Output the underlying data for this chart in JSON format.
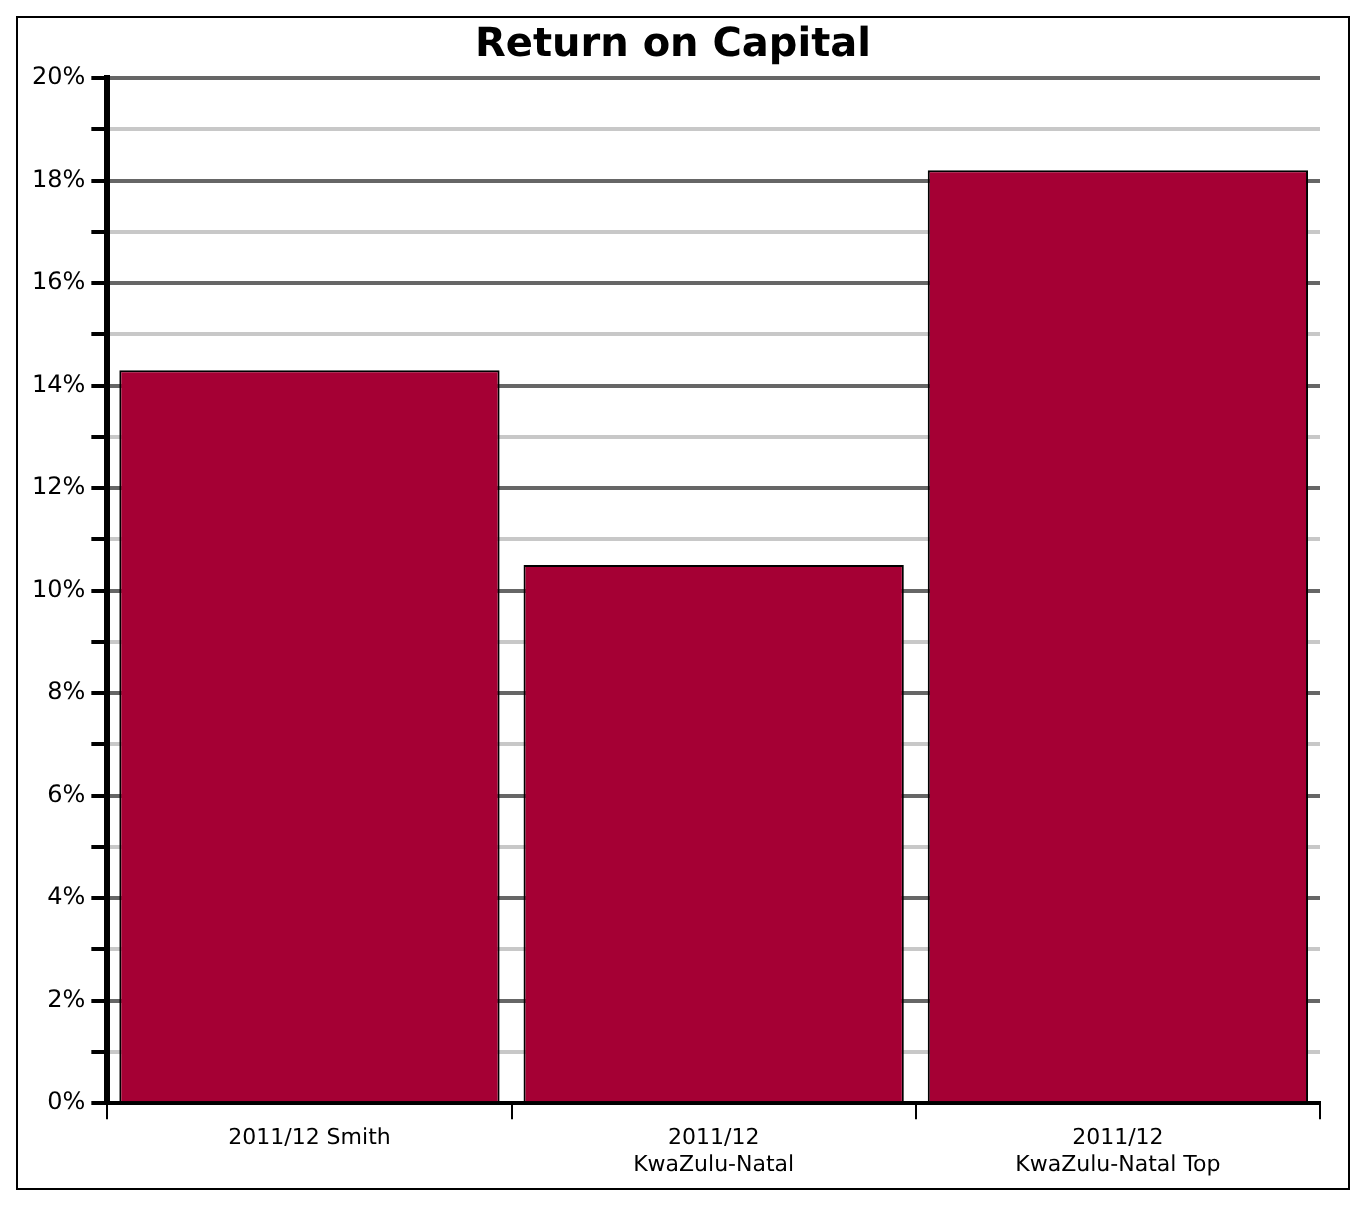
{
  "chart_data": {
    "type": "bar",
    "title": "Return on Capital",
    "categories": [
      "2011/12 Smith",
      "2011/12\nKwaZulu-Natal",
      "2011/12\nKwaZulu-Natal Top"
    ],
    "values": [
      14.3,
      10.5,
      18.2
    ],
    "color": "#a50034",
    "ylim": [
      0,
      20
    ],
    "yticks": [
      {
        "value": 0,
        "label": "0%"
      },
      {
        "value": 1,
        "label": null
      },
      {
        "value": 2,
        "label": "2%"
      },
      {
        "value": 3,
        "label": null
      },
      {
        "value": 4,
        "label": "4%"
      },
      {
        "value": 5,
        "label": null
      },
      {
        "value": 6,
        "label": "6%"
      },
      {
        "value": 7,
        "label": null
      },
      {
        "value": 8,
        "label": "8%"
      },
      {
        "value": 9,
        "label": null
      },
      {
        "value": 10,
        "label": "10%"
      },
      {
        "value": 11,
        "label": null
      },
      {
        "value": 12,
        "label": "12%"
      },
      {
        "value": 13,
        "label": null
      },
      {
        "value": 14,
        "label": "14%"
      },
      {
        "value": 15,
        "label": null
      },
      {
        "value": 16,
        "label": "16%"
      },
      {
        "value": 17,
        "label": null
      },
      {
        "value": 18,
        "label": "18%"
      },
      {
        "value": 19,
        "label": null
      },
      {
        "value": 20,
        "label": "20%"
      }
    ],
    "grid": true
  }
}
